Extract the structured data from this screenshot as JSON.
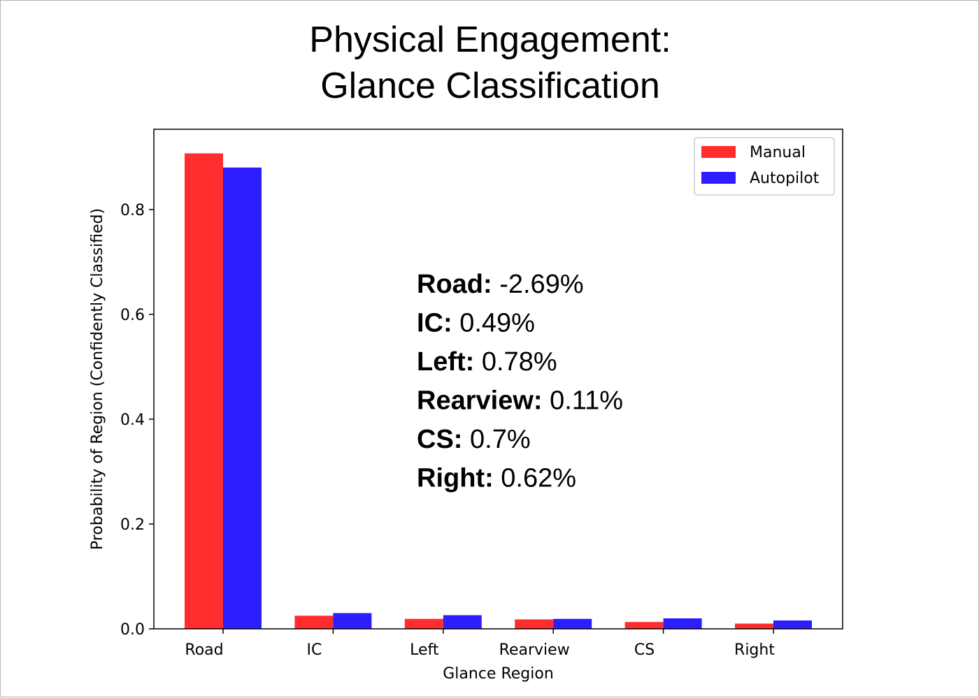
{
  "chart_data": {
    "type": "bar",
    "title": [
      "Physical Engagement:",
      "Glance Classification"
    ],
    "xlabel": "Glance Region",
    "ylabel": "Probability of Region (Confidently Classified)",
    "categories": [
      "Road",
      "IC",
      "Left",
      "Rearview",
      "CS",
      "Right"
    ],
    "series": [
      {
        "name": "Manual",
        "color": "#ff2d2d",
        "values": [
          0.907,
          0.025,
          0.019,
          0.018,
          0.013,
          0.01
        ]
      },
      {
        "name": "Autopilot",
        "color": "#2d1eff",
        "values": [
          0.88,
          0.03,
          0.026,
          0.019,
          0.02,
          0.016
        ]
      }
    ],
    "ylim": [
      0,
      0.953
    ],
    "yticks": [
      "0.0",
      "0.2",
      "0.4",
      "0.6",
      "0.8"
    ],
    "ytick_values": [
      0,
      0.2,
      0.4,
      0.6,
      0.8
    ],
    "grid": false,
    "legend_position": "top-right",
    "annotations": [
      {
        "key": "Road:",
        "value": " -2.69%"
      },
      {
        "key": "IC:",
        "value": " 0.49%"
      },
      {
        "key": "Left:",
        "value": " 0.78%"
      },
      {
        "key": "Rearview:",
        "value": " 0.11%"
      },
      {
        "key": "CS:",
        "value": " 0.7%"
      },
      {
        "key": "Right:",
        "value": " 0.62%"
      }
    ]
  }
}
